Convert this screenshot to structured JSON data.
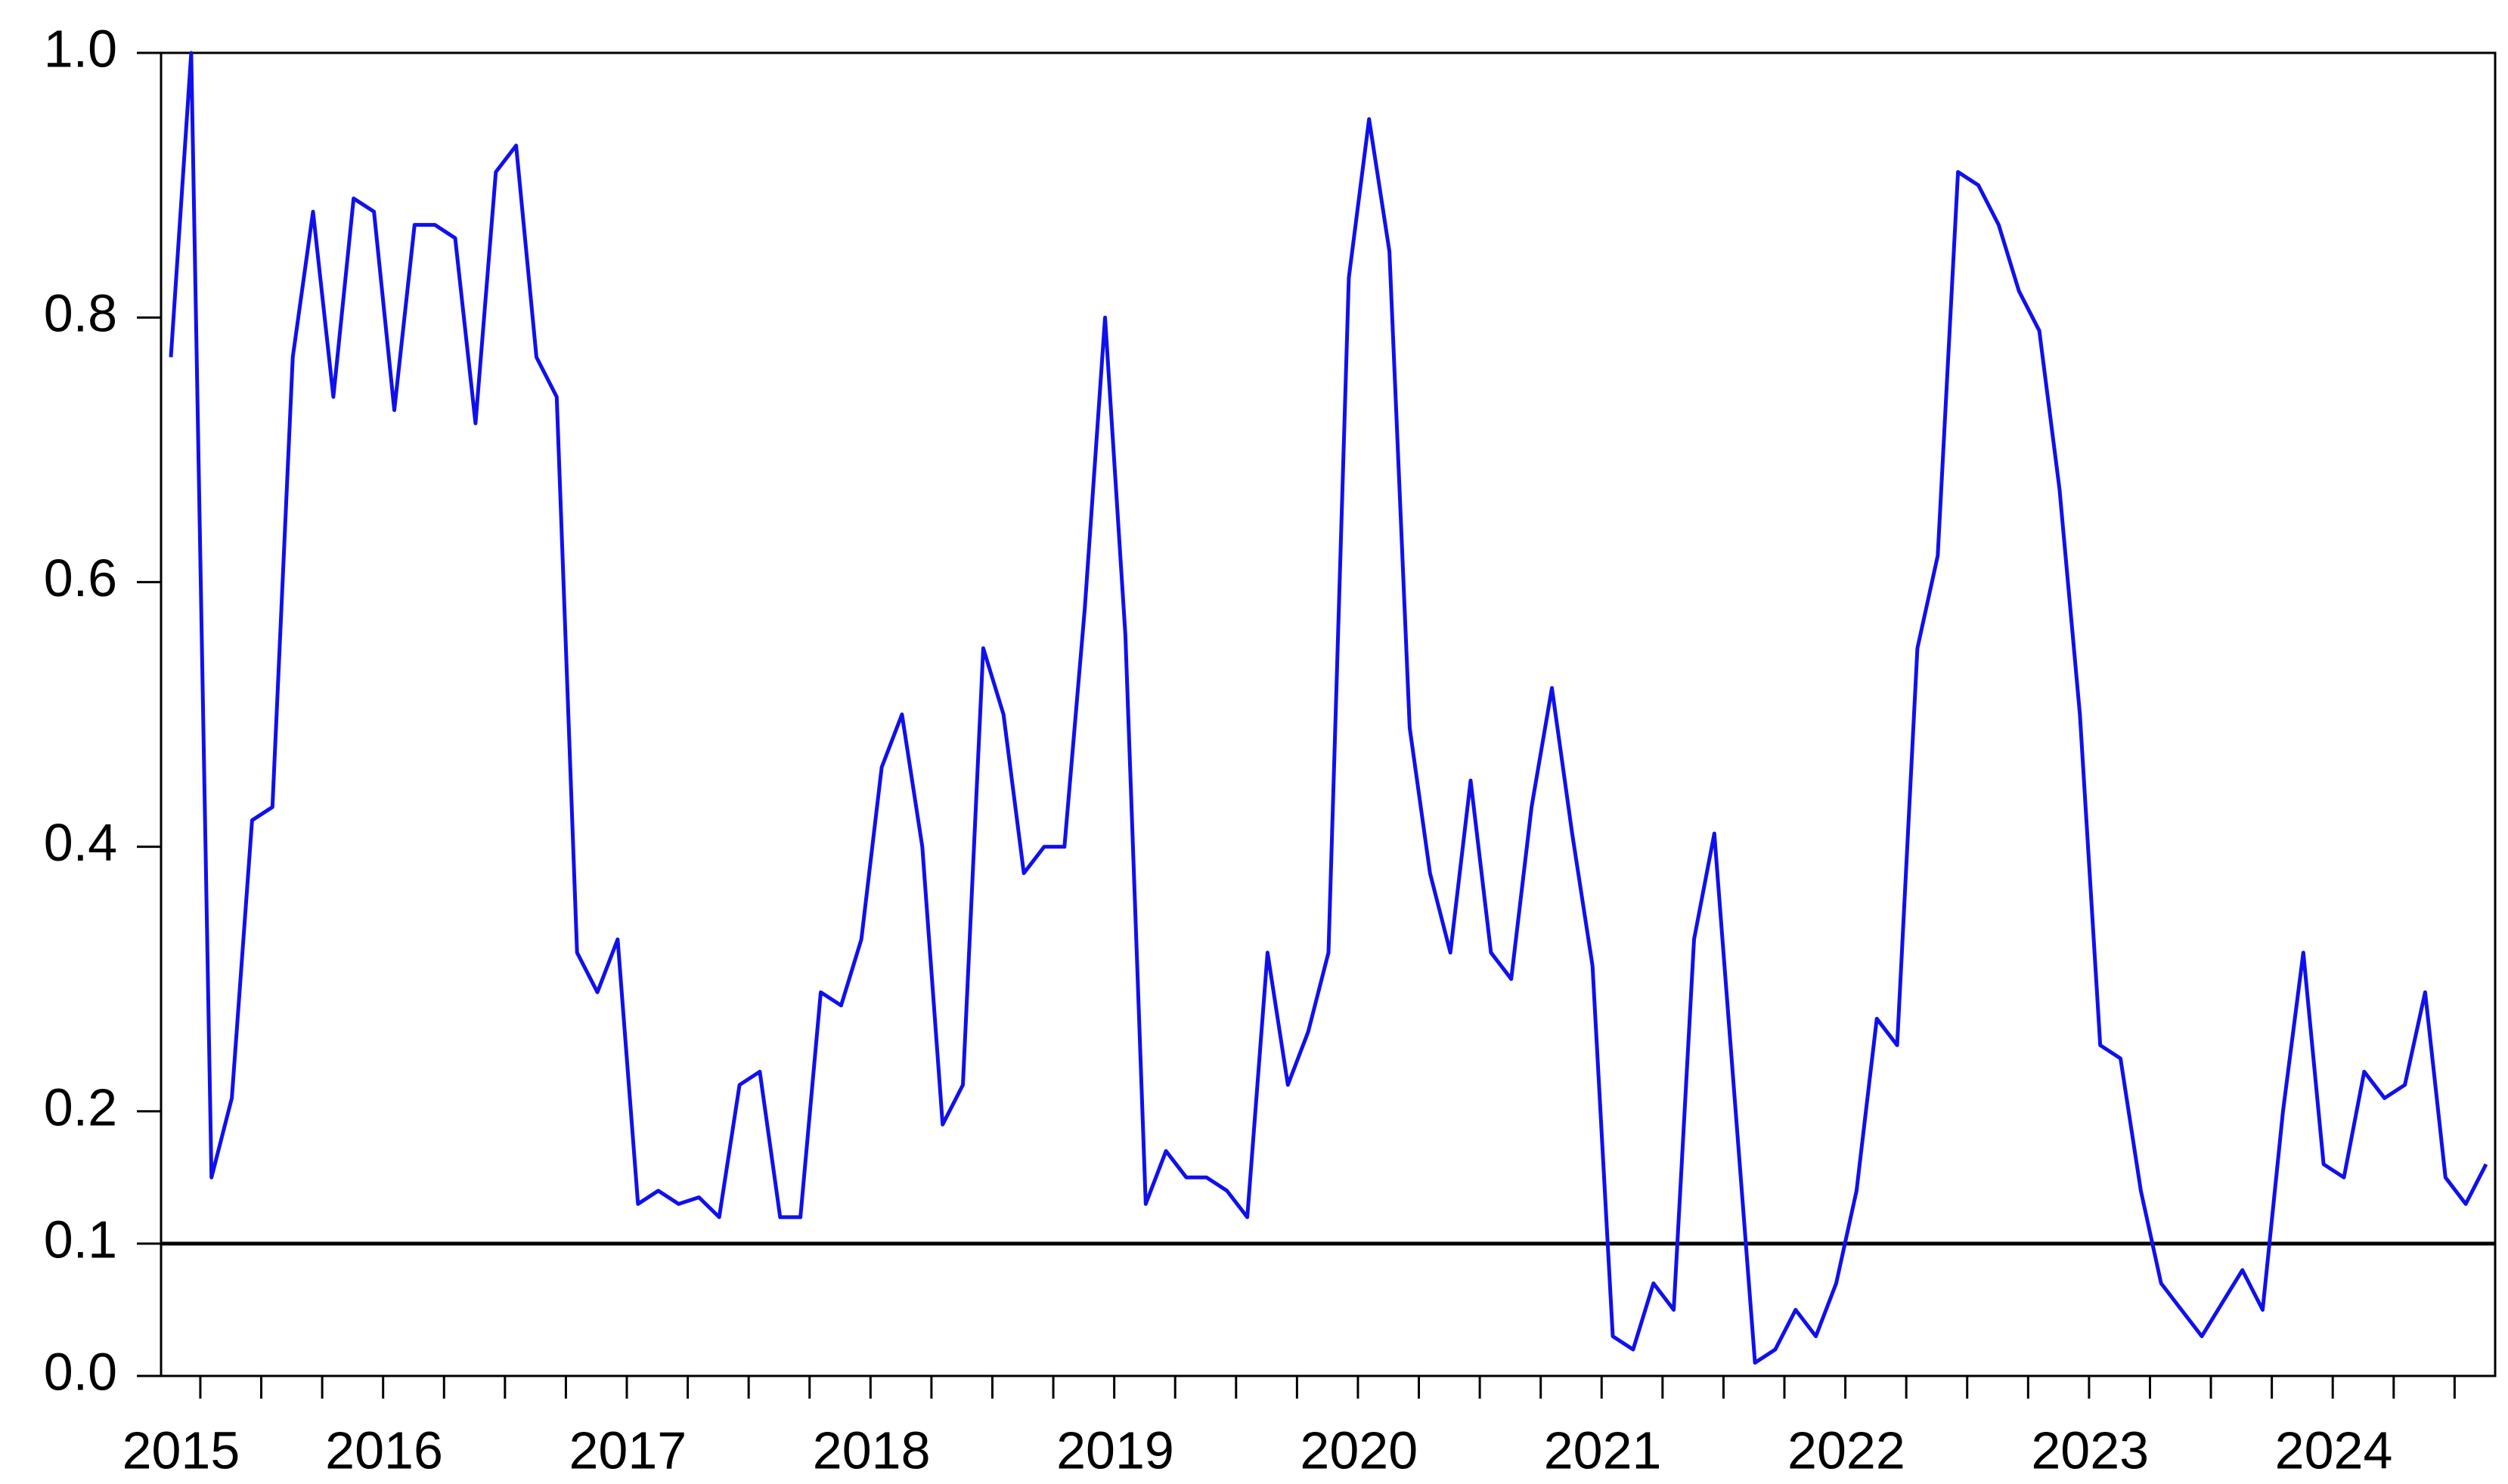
{
  "chart_data": {
    "type": "line",
    "categories": [
      "2015",
      null,
      null,
      null,
      null,
      null,
      null,
      null,
      null,
      null,
      "2016",
      null,
      null,
      null,
      null,
      null,
      null,
      null,
      null,
      null,
      null,
      null,
      "2017",
      null,
      null,
      null,
      null,
      null,
      null,
      null,
      null,
      null,
      null,
      null,
      "2018",
      null,
      null,
      null,
      null,
      null,
      null,
      null,
      null,
      null,
      null,
      null,
      "2019",
      null,
      null,
      null,
      null,
      null,
      null,
      null,
      null,
      null,
      null,
      null,
      "2020",
      null,
      null,
      null,
      null,
      null,
      null,
      null,
      null,
      null,
      null,
      null,
      "2021",
      null,
      null,
      null,
      null,
      null,
      null,
      null,
      null,
      null,
      null,
      null,
      "2022",
      null,
      null,
      null,
      null,
      null,
      null,
      null,
      null,
      null,
      null,
      null,
      "2023",
      null,
      null,
      null,
      null,
      null,
      null,
      null,
      null,
      null,
      null,
      null,
      "2024",
      null,
      null,
      null,
      null,
      null,
      null,
      null,
      null
    ],
    "values": [
      0.77,
      1.0,
      0.15,
      0.21,
      0.42,
      0.43,
      0.77,
      0.88,
      0.74,
      0.89,
      0.88,
      0.73,
      0.87,
      0.87,
      0.86,
      0.72,
      0.91,
      0.93,
      0.77,
      0.74,
      0.32,
      0.29,
      0.33,
      0.13,
      0.14,
      0.13,
      0.135,
      0.12,
      0.22,
      0.23,
      0.12,
      0.12,
      0.29,
      0.28,
      0.33,
      0.46,
      0.5,
      0.4,
      0.19,
      0.22,
      0.55,
      0.5,
      0.38,
      0.4,
      0.4,
      0.58,
      0.8,
      0.56,
      0.13,
      0.17,
      0.15,
      0.15,
      0.14,
      0.12,
      0.32,
      0.22,
      0.26,
      0.32,
      0.83,
      0.95,
      0.85,
      0.49,
      0.38,
      0.32,
      0.45,
      0.32,
      0.3,
      0.43,
      0.52,
      0.41,
      0.31,
      0.03,
      0.02,
      0.07,
      0.05,
      0.33,
      0.41,
      0.21,
      0.01,
      0.02,
      0.05,
      0.03,
      0.07,
      0.14,
      0.27,
      0.25,
      0.55,
      0.62,
      0.91,
      0.9,
      0.87,
      0.82,
      0.79,
      0.67,
      0.5,
      0.25,
      0.24,
      0.14,
      0.07,
      0.05,
      0.03,
      0.055,
      0.08,
      0.05,
      0.2,
      0.32,
      0.16,
      0.15,
      0.23,
      0.21,
      0.22,
      0.29,
      0.15,
      0.13,
      0.16
    ],
    "color": "#1010ee",
    "ylim": [
      0,
      1
    ],
    "yticks": [
      {
        "value": 0,
        "label": "0.0"
      },
      0.1,
      0.2,
      0.4,
      0.6,
      0.8,
      {
        "value": 1,
        "label": "1.0"
      }
    ],
    "hline": 0.1
  }
}
